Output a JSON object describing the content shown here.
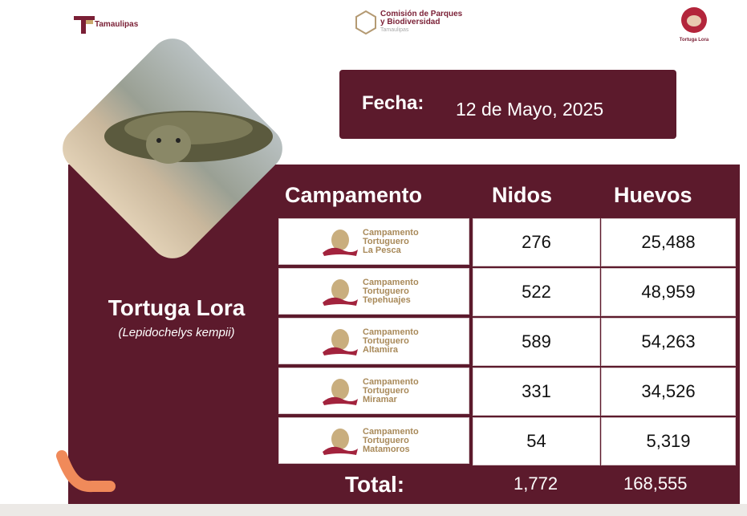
{
  "header": {
    "logo_left": "Tamaulipas",
    "logo_center": {
      "line1": "Comisión de Parques",
      "line2": "y Biodiversidad",
      "line3": "Tamaulipas"
    },
    "logo_right": "Tortuga Lora"
  },
  "fecha": {
    "label": "Fecha:",
    "value": "12 de Mayo, 2025"
  },
  "species": {
    "name": "Tortuga Lora",
    "scientific": "(Lepidochelys kempii)"
  },
  "table": {
    "headers": [
      "Campamento",
      "Nidos",
      "Huevos"
    ],
    "rows": [
      {
        "l1": "Campamento",
        "l2": "Tortuguero",
        "l3": "La Pesca",
        "nidos": "276",
        "huevos": "25,488"
      },
      {
        "l1": "Campamento",
        "l2": "Tortuguero",
        "l3": "Tepehuajes",
        "nidos": "522",
        "huevos": "48,959"
      },
      {
        "l1": "Campamento",
        "l2": "Tortuguero",
        "l3": "Altamira",
        "nidos": "589",
        "huevos": "54,263"
      },
      {
        "l1": "Campamento",
        "l2": "Tortuguero",
        "l3": "Miramar",
        "nidos": "331",
        "huevos": "34,526"
      },
      {
        "l1": "Campamento",
        "l2": "Tortuguero",
        "l3": "Matamoros",
        "nidos": "54",
        "huevos": "5,319"
      }
    ],
    "total": {
      "label": "Total:",
      "nidos": "1,772",
      "huevos": "168,555"
    }
  },
  "colors": {
    "panel": "#5c1a2c",
    "camp_text": "#a98a5a",
    "annotation": "#f08a5a"
  }
}
